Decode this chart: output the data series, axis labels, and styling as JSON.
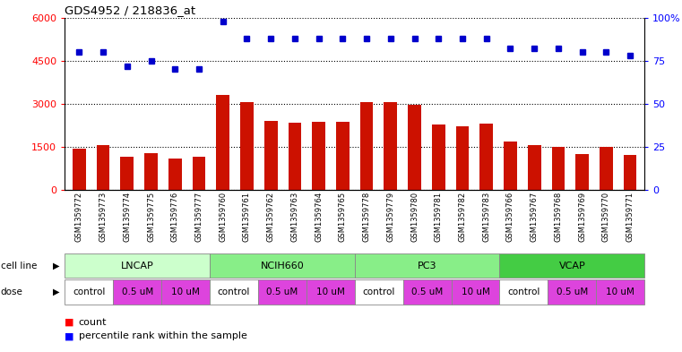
{
  "title": "GDS4952 / 218836_at",
  "samples": [
    "GSM1359772",
    "GSM1359773",
    "GSM1359774",
    "GSM1359775",
    "GSM1359776",
    "GSM1359777",
    "GSM1359760",
    "GSM1359761",
    "GSM1359762",
    "GSM1359763",
    "GSM1359764",
    "GSM1359765",
    "GSM1359778",
    "GSM1359779",
    "GSM1359780",
    "GSM1359781",
    "GSM1359782",
    "GSM1359783",
    "GSM1359766",
    "GSM1359767",
    "GSM1359768",
    "GSM1359769",
    "GSM1359770",
    "GSM1359771"
  ],
  "counts": [
    1450,
    1550,
    1150,
    1280,
    1100,
    1150,
    3300,
    3060,
    2420,
    2350,
    2380,
    2380,
    3050,
    3060,
    2970,
    2270,
    2230,
    2310,
    1700,
    1580,
    1500,
    1260,
    1490,
    1230
  ],
  "percentile_ranks": [
    80,
    80,
    72,
    75,
    70,
    70,
    98,
    88,
    88,
    88,
    88,
    88,
    88,
    88,
    88,
    88,
    88,
    88,
    82,
    82,
    82,
    80,
    80,
    78
  ],
  "cell_lines": [
    {
      "name": "LNCAP",
      "start": 0,
      "end": 6,
      "color": "#ccffcc"
    },
    {
      "name": "NCIH660",
      "start": 6,
      "end": 12,
      "color": "#88ee88"
    },
    {
      "name": "PC3",
      "start": 12,
      "end": 18,
      "color": "#88ee88"
    },
    {
      "name": "VCAP",
      "start": 18,
      "end": 24,
      "color": "#44cc44"
    }
  ],
  "doses": [
    {
      "label": "control",
      "start": 0,
      "end": 2,
      "color": "#ffffff"
    },
    {
      "label": "0.5 uM",
      "start": 2,
      "end": 4,
      "color": "#dd44dd"
    },
    {
      "label": "10 uM",
      "start": 4,
      "end": 6,
      "color": "#dd44dd"
    },
    {
      "label": "control",
      "start": 6,
      "end": 8,
      "color": "#ffffff"
    },
    {
      "label": "0.5 uM",
      "start": 8,
      "end": 10,
      "color": "#dd44dd"
    },
    {
      "label": "10 uM",
      "start": 10,
      "end": 12,
      "color": "#dd44dd"
    },
    {
      "label": "control",
      "start": 12,
      "end": 14,
      "color": "#ffffff"
    },
    {
      "label": "0.5 uM",
      "start": 14,
      "end": 16,
      "color": "#dd44dd"
    },
    {
      "label": "10 uM",
      "start": 16,
      "end": 18,
      "color": "#dd44dd"
    },
    {
      "label": "control",
      "start": 18,
      "end": 20,
      "color": "#ffffff"
    },
    {
      "label": "0.5 uM",
      "start": 20,
      "end": 22,
      "color": "#dd44dd"
    },
    {
      "label": "10 uM",
      "start": 22,
      "end": 24,
      "color": "#dd44dd"
    }
  ],
  "bar_color": "#cc1100",
  "dot_color": "#0000cc",
  "ylim_left": [
    0,
    6000
  ],
  "ylim_right": [
    0,
    100
  ],
  "yticks_left": [
    0,
    1500,
    3000,
    4500,
    6000
  ],
  "yticks_right": [
    0,
    25,
    50,
    75,
    100
  ],
  "background_color": "#ffffff",
  "plot_bg_color": "#ffffff"
}
